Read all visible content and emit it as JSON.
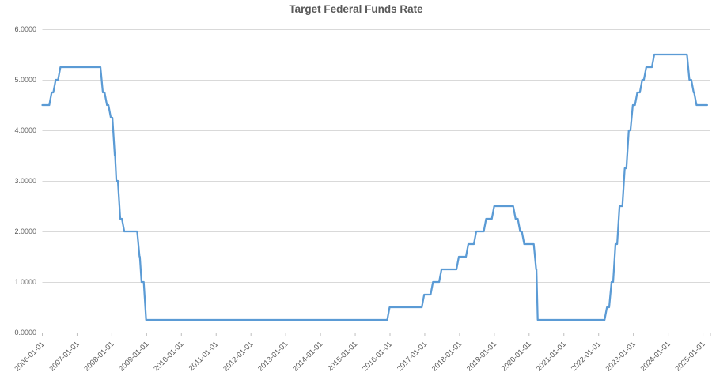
{
  "chart_data": {
    "type": "line",
    "title": "Target Federal Funds Rate",
    "legend": "none",
    "grid": "horizontal",
    "ylim": [
      0,
      6
    ],
    "y_ticks": [
      0,
      1,
      2,
      3,
      4,
      5,
      6
    ],
    "y_tick_labels": [
      "0.0000",
      "1.0000",
      "2.0000",
      "3.0000",
      "4.0000",
      "5.0000",
      "6.0000"
    ],
    "x_tick_labels": [
      "2006-01-01",
      "2007-01-01",
      "2008-01-01",
      "2009-01-01",
      "2010-01-01",
      "2011-01-01",
      "2012-01-01",
      "2013-01-01",
      "2014-01-01",
      "2015-01-01",
      "2016-01-01",
      "2017-01-01",
      "2018-01-01",
      "2019-01-01",
      "2020-01-01",
      "2021-01-01",
      "2022-01-01",
      "2023-01-01",
      "2024-01-01",
      "2025-01-01"
    ],
    "series": [
      {
        "name": "Target Federal Funds Rate",
        "color": "#5B9BD5",
        "start": [
          "2006-01-01",
          4.5
        ],
        "end_date": "2025-02-15",
        "rate_changes": [
          [
            "2006-03-28",
            4.75
          ],
          [
            "2006-05-10",
            5.0
          ],
          [
            "2006-06-29",
            5.25
          ],
          [
            "2007-09-18",
            4.75
          ],
          [
            "2007-10-31",
            4.5
          ],
          [
            "2007-12-11",
            4.25
          ],
          [
            "2008-01-22",
            3.5
          ],
          [
            "2008-01-30",
            3.0
          ],
          [
            "2008-03-18",
            2.25
          ],
          [
            "2008-04-30",
            2.0
          ],
          [
            "2008-10-08",
            1.5
          ],
          [
            "2008-10-29",
            1.0
          ],
          [
            "2008-12-16",
            0.25
          ],
          [
            "2015-12-17",
            0.5
          ],
          [
            "2016-12-15",
            0.75
          ],
          [
            "2017-03-16",
            1.0
          ],
          [
            "2017-06-15",
            1.25
          ],
          [
            "2017-12-14",
            1.5
          ],
          [
            "2018-03-22",
            1.75
          ],
          [
            "2018-06-14",
            2.0
          ],
          [
            "2018-09-27",
            2.25
          ],
          [
            "2018-12-20",
            2.5
          ],
          [
            "2019-08-01",
            2.25
          ],
          [
            "2019-09-19",
            2.0
          ],
          [
            "2019-10-31",
            1.75
          ],
          [
            "2020-03-04",
            1.25
          ],
          [
            "2020-03-16",
            0.25
          ],
          [
            "2022-03-17",
            0.5
          ],
          [
            "2022-05-05",
            1.0
          ],
          [
            "2022-06-16",
            1.75
          ],
          [
            "2022-07-28",
            2.5
          ],
          [
            "2022-09-22",
            3.25
          ],
          [
            "2022-11-03",
            4.0
          ],
          [
            "2022-12-15",
            4.5
          ],
          [
            "2023-02-02",
            4.75
          ],
          [
            "2023-03-23",
            5.0
          ],
          [
            "2023-05-04",
            5.25
          ],
          [
            "2023-07-27",
            5.5
          ],
          [
            "2024-08-01",
            5.0
          ],
          [
            "2024-09-15",
            4.75
          ],
          [
            "2024-10-15",
            4.5
          ]
        ]
      }
    ],
    "colors": {
      "line": "#5B9BD5",
      "gridline": "#D9D9D9",
      "axis": "#BFBFBF",
      "tick": "#BFBFBF",
      "label": "#595959",
      "title": "#595959",
      "background": "#FFFFFF"
    }
  }
}
